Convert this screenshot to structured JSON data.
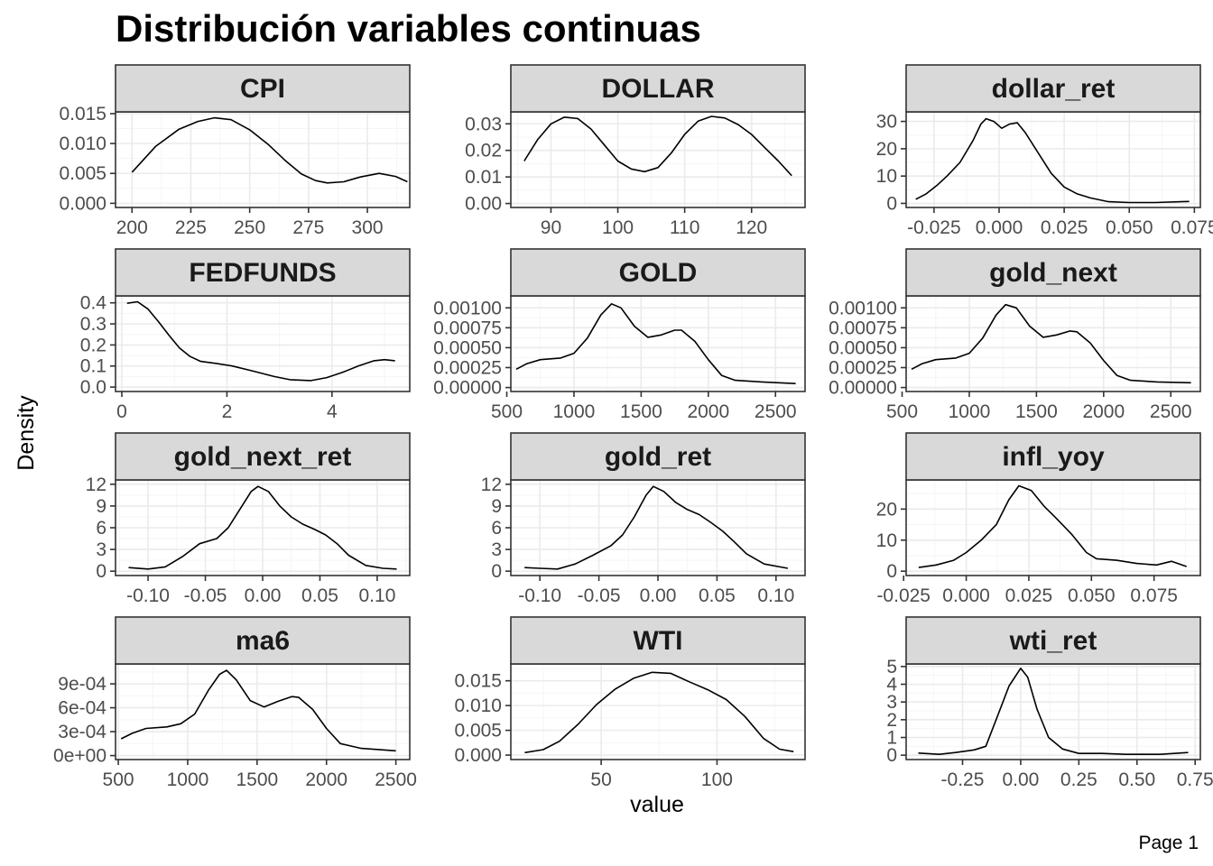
{
  "chart_data": {
    "type": "line",
    "title": "Distribución variables continuas",
    "xlabel": "value",
    "ylabel": "Density",
    "footer": "Page 1",
    "grid": true,
    "colors": {
      "strip_fill": "#d9d9d9",
      "strip_border": "#333333",
      "panel_border": "#333333",
      "grid_major": "#ebebeb",
      "grid_minor": "#f5f5f5",
      "line": "#000000"
    },
    "panels": [
      {
        "name": "CPI",
        "xlim": [
          193,
          318
        ],
        "ylim": [
          -0.0007,
          0.0153
        ],
        "xticks": [
          200,
          225,
          250,
          275,
          300
        ],
        "xtick_labels": [
          "200",
          "225",
          "250",
          "275",
          "300"
        ],
        "yticks": [
          0,
          0.005,
          0.01,
          0.015
        ],
        "ytick_labels": [
          "0.000",
          "0.005",
          "0.010",
          "0.015"
        ],
        "x": [
          200,
          210,
          220,
          228,
          235,
          242,
          250,
          258,
          265,
          272,
          278,
          283,
          290,
          297,
          305,
          312,
          317
        ],
        "y": [
          0.0052,
          0.0095,
          0.0124,
          0.0137,
          0.0143,
          0.014,
          0.0123,
          0.0098,
          0.0072,
          0.0049,
          0.0038,
          0.0034,
          0.0036,
          0.0044,
          0.005,
          0.0045,
          0.0036
        ]
      },
      {
        "name": "DOLLAR",
        "xlim": [
          84,
          128
        ],
        "ylim": [
          -0.0015,
          0.0345
        ],
        "xticks": [
          90,
          100,
          110,
          120
        ],
        "xtick_labels": [
          "90",
          "100",
          "110",
          "120"
        ],
        "yticks": [
          0,
          0.01,
          0.02,
          0.03
        ],
        "ytick_labels": [
          "0.00",
          "0.01",
          "0.02",
          "0.03"
        ],
        "x": [
          86,
          88,
          90,
          92,
          94,
          96,
          98,
          100,
          102,
          104,
          106,
          108,
          110,
          112,
          114,
          116,
          118,
          120,
          122,
          124,
          126
        ],
        "y": [
          0.016,
          0.024,
          0.03,
          0.0325,
          0.032,
          0.028,
          0.022,
          0.016,
          0.013,
          0.012,
          0.0135,
          0.019,
          0.026,
          0.031,
          0.0328,
          0.0322,
          0.0297,
          0.026,
          0.021,
          0.016,
          0.0105
        ]
      },
      {
        "name": "dollar_ret",
        "xlim": [
          -0.0357,
          0.0773
        ],
        "ylim": [
          -1.5,
          33.5
        ],
        "xticks": [
          -0.025,
          0,
          0.025,
          0.05,
          0.075
        ],
        "xtick_labels": [
          "-0.025",
          "0.000",
          "0.025",
          "0.050",
          "0.075"
        ],
        "yticks": [
          0,
          10,
          20,
          30
        ],
        "ytick_labels": [
          "0",
          "10",
          "20",
          "30"
        ],
        "x": [
          -0.032,
          -0.028,
          -0.024,
          -0.02,
          -0.015,
          -0.01,
          -0.007,
          -0.005,
          -0.002,
          0.001,
          0.004,
          0.007,
          0.01,
          0.014,
          0.02,
          0.025,
          0.03,
          0.035,
          0.042,
          0.05,
          0.06,
          0.07,
          0.073
        ],
        "y": [
          1.5,
          3.5,
          6.5,
          10,
          15,
          23,
          29,
          31,
          30,
          27.5,
          29,
          29.5,
          26,
          20,
          11,
          6,
          3.5,
          2,
          0.6,
          0.3,
          0.3,
          0.6,
          0.7
        ]
      },
      {
        "name": "FEDFUNDS",
        "xlim": [
          -0.12,
          5.48
        ],
        "ylim": [
          -0.021,
          0.433
        ],
        "xticks": [
          0,
          2,
          4
        ],
        "xtick_labels": [
          "0",
          "2",
          "4"
        ],
        "yticks": [
          0,
          0.1,
          0.2,
          0.3,
          0.4
        ],
        "ytick_labels": [
          "0.0",
          "0.1",
          "0.2",
          "0.3",
          "0.4"
        ],
        "x": [
          0.1,
          0.3,
          0.5,
          0.7,
          0.9,
          1.1,
          1.3,
          1.5,
          1.8,
          2.1,
          2.5,
          2.9,
          3.2,
          3.6,
          3.9,
          4.2,
          4.5,
          4.8,
          5.0,
          5.2
        ],
        "y": [
          0.398,
          0.405,
          0.37,
          0.31,
          0.245,
          0.185,
          0.145,
          0.122,
          0.112,
          0.1,
          0.076,
          0.05,
          0.035,
          0.031,
          0.045,
          0.07,
          0.1,
          0.125,
          0.13,
          0.125
        ]
      },
      {
        "name": "GOLD",
        "xlim": [
          530,
          2720
        ],
        "ylim": [
          -5e-05,
          0.00115
        ],
        "xticks": [
          500,
          1000,
          1500,
          2000,
          2500
        ],
        "xtick_labels": [
          "500",
          "1000",
          "1500",
          "2000",
          "2500"
        ],
        "yticks": [
          0,
          0.00025,
          0.0005,
          0.00075,
          0.001
        ],
        "ytick_labels": [
          "0.00000",
          "0.00025",
          "0.00050",
          "0.00075",
          "0.00100"
        ],
        "x": [
          570,
          650,
          750,
          900,
          1000,
          1100,
          1200,
          1280,
          1350,
          1450,
          1550,
          1650,
          1750,
          1800,
          1900,
          2000,
          2100,
          2200,
          2400,
          2650
        ],
        "y": [
          0.00023,
          0.0003,
          0.00035,
          0.00037,
          0.00043,
          0.00062,
          0.00091,
          0.00105,
          0.001,
          0.00077,
          0.00063,
          0.00066,
          0.00072,
          0.00072,
          0.00058,
          0.00035,
          0.00015,
          9e-05,
          7e-05,
          5e-05
        ]
      },
      {
        "name": "gold_next",
        "xlim": [
          530,
          2720
        ],
        "ylim": [
          -5e-05,
          0.00115
        ],
        "xticks": [
          500,
          1000,
          1500,
          2000,
          2500
        ],
        "xtick_labels": [
          "500",
          "1000",
          "1500",
          "2000",
          "2500"
        ],
        "yticks": [
          0,
          0.00025,
          0.0005,
          0.00075,
          0.001
        ],
        "ytick_labels": [
          "0.00000",
          "0.00025",
          "0.00050",
          "0.00075",
          "0.00100"
        ],
        "x": [
          570,
          650,
          750,
          900,
          1000,
          1100,
          1200,
          1270,
          1350,
          1450,
          1550,
          1650,
          1750,
          1800,
          1900,
          2000,
          2100,
          2200,
          2400,
          2650
        ],
        "y": [
          0.00023,
          0.0003,
          0.00035,
          0.00037,
          0.00043,
          0.00062,
          0.00091,
          0.00104,
          0.001,
          0.00077,
          0.00063,
          0.00066,
          0.00071,
          0.0007,
          0.00056,
          0.00034,
          0.00015,
          9e-05,
          7e-05,
          6e-05
        ]
      },
      {
        "name": "gold_next_ret",
        "xlim": [
          -0.1284,
          0.1284
        ],
        "ylim": [
          -0.6,
          12.6
        ],
        "xticks": [
          -0.1,
          -0.05,
          0,
          0.05,
          0.1
        ],
        "xtick_labels": [
          "-0.10",
          "-0.05",
          "0.00",
          "0.05",
          "0.10"
        ],
        "yticks": [
          0,
          3,
          6,
          9,
          12
        ],
        "ytick_labels": [
          "0",
          "3",
          "6",
          "9",
          "12"
        ],
        "x": [
          -0.117,
          -0.1,
          -0.085,
          -0.07,
          -0.055,
          -0.04,
          -0.03,
          -0.02,
          -0.01,
          -0.004,
          0.005,
          0.015,
          0.025,
          0.035,
          0.045,
          0.055,
          0.065,
          0.075,
          0.09,
          0.105,
          0.117
        ],
        "y": [
          0.5,
          0.3,
          0.6,
          2,
          3.8,
          4.5,
          6,
          8.5,
          11,
          11.7,
          11,
          9,
          7.5,
          6.5,
          5.8,
          5,
          3.8,
          2.2,
          0.8,
          0.4,
          0.3
        ]
      },
      {
        "name": "gold_ret",
        "xlim": [
          -0.1246,
          0.1246
        ],
        "ylim": [
          -0.6,
          12.6
        ],
        "xticks": [
          -0.1,
          -0.05,
          0,
          0.05,
          0.1
        ],
        "xtick_labels": [
          "-0.10",
          "-0.05",
          "0.00",
          "0.05",
          "0.10"
        ],
        "yticks": [
          0,
          3,
          6,
          9,
          12
        ],
        "ytick_labels": [
          "0",
          "3",
          "6",
          "9",
          "12"
        ],
        "x": [
          -0.113,
          -0.1,
          -0.085,
          -0.07,
          -0.055,
          -0.04,
          -0.03,
          -0.02,
          -0.01,
          -0.004,
          0.005,
          0.015,
          0.025,
          0.035,
          0.045,
          0.055,
          0.065,
          0.075,
          0.09,
          0.11
        ],
        "y": [
          0.5,
          0.4,
          0.3,
          1,
          2.2,
          3.5,
          5,
          7.5,
          10.5,
          11.7,
          11,
          9.5,
          8.5,
          7.8,
          6.7,
          5.5,
          4,
          2.4,
          1,
          0.4
        ]
      },
      {
        "name": "infl_yoy",
        "xlim": [
          -0.024,
          0.0935
        ],
        "ylim": [
          -1.4,
          29.4
        ],
        "xticks": [
          -0.025,
          0,
          0.025,
          0.05,
          0.075
        ],
        "xtick_labels": [
          "-0.025",
          "0.000",
          "0.025",
          "0.050",
          "0.075"
        ],
        "yticks": [
          0,
          10,
          20
        ],
        "ytick_labels": [
          "0",
          "10",
          "20"
        ],
        "x": [
          -0.019,
          -0.012,
          -0.005,
          0,
          0.006,
          0.012,
          0.017,
          0.021,
          0.026,
          0.031,
          0.036,
          0.042,
          0.048,
          0.052,
          0.06,
          0.068,
          0.076,
          0.082,
          0.088
        ],
        "y": [
          1.2,
          2,
          3.5,
          6,
          10,
          15,
          23,
          27.5,
          26,
          21,
          17,
          12,
          6,
          4,
          3.5,
          2.5,
          2,
          3.2,
          1.5
        ]
      },
      {
        "name": "ma6",
        "xlim": [
          480,
          2600
        ],
        "ylim": [
          -5e-05,
          0.00115
        ],
        "xticks": [
          500,
          1000,
          1500,
          2000,
          2500
        ],
        "xtick_labels": [
          "500",
          "1000",
          "1500",
          "2000",
          "2500"
        ],
        "yticks": [
          0,
          0.0003,
          0.0006,
          0.0009
        ],
        "ytick_labels": [
          "0e+00",
          "3e-04",
          "6e-04",
          "9e-04"
        ],
        "x": [
          520,
          600,
          700,
          850,
          950,
          1050,
          1150,
          1230,
          1280,
          1350,
          1450,
          1550,
          1650,
          1750,
          1800,
          1900,
          2000,
          2100,
          2250,
          2500
        ],
        "y": [
          0.00021,
          0.00028,
          0.00034,
          0.00036,
          0.0004,
          0.00052,
          0.00082,
          0.00102,
          0.00107,
          0.00095,
          0.00069,
          0.00061,
          0.00068,
          0.00074,
          0.00073,
          0.00058,
          0.00034,
          0.00015,
          9e-05,
          6e-05
        ]
      },
      {
        "name": "WTI",
        "xlim": [
          11,
          138
        ],
        "ylim": [
          -0.0009,
          0.0184
        ],
        "xticks": [
          50,
          100
        ],
        "xtick_labels": [
          "50",
          "100"
        ],
        "yticks": [
          0,
          0.005,
          0.01,
          0.015
        ],
        "ytick_labels": [
          "0.000",
          "0.005",
          "0.010",
          "0.015"
        ],
        "x": [
          17,
          25,
          32,
          40,
          48,
          56,
          64,
          72,
          80,
          88,
          96,
          104,
          112,
          120,
          127,
          133
        ],
        "y": [
          0.0005,
          0.0011,
          0.0028,
          0.0062,
          0.0102,
          0.0133,
          0.0155,
          0.0167,
          0.0165,
          0.0148,
          0.0132,
          0.0112,
          0.0078,
          0.0034,
          0.0012,
          0.0007
        ]
      },
      {
        "name": "wti_ret",
        "xlim": [
          -0.4925,
          0.7725
        ],
        "ylim": [
          -0.245,
          5.145
        ],
        "xticks": [
          -0.25,
          0,
          0.25,
          0.5,
          0.75
        ],
        "xtick_labels": [
          "-0.25",
          "0.00",
          "0.25",
          "0.50",
          "0.75"
        ],
        "yticks": [
          0,
          1,
          2,
          3,
          4,
          5
        ],
        "ytick_labels": [
          "0",
          "1",
          "2",
          "3",
          "4",
          "5"
        ],
        "x": [
          -0.44,
          -0.35,
          -0.28,
          -0.2,
          -0.15,
          -0.1,
          -0.05,
          0,
          0.03,
          0.07,
          0.12,
          0.18,
          0.25,
          0.35,
          0.45,
          0.6,
          0.72
        ],
        "y": [
          0.12,
          0.05,
          0.15,
          0.3,
          0.5,
          2.2,
          3.9,
          4.9,
          4.4,
          2.6,
          1,
          0.35,
          0.1,
          0.1,
          0.05,
          0.05,
          0.15
        ]
      }
    ]
  }
}
